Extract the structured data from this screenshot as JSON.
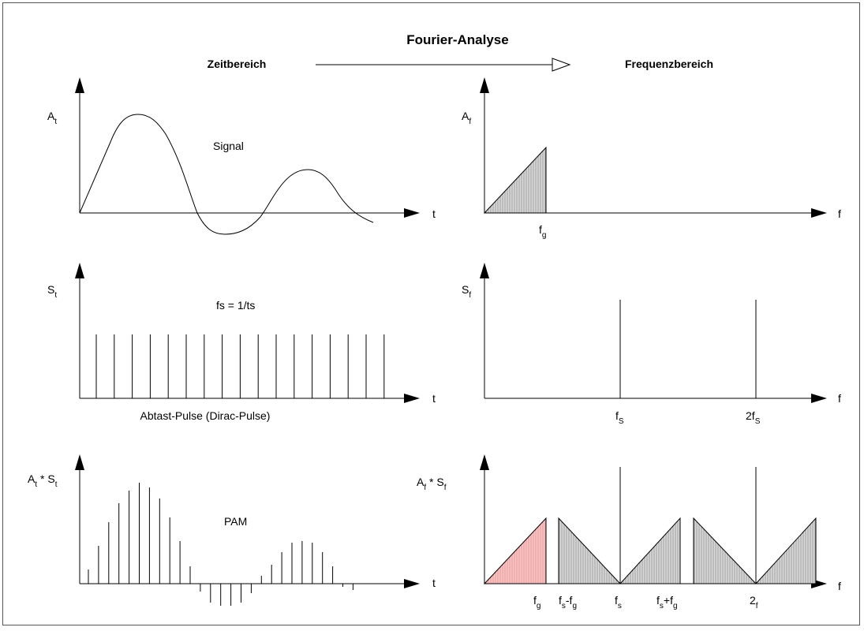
{
  "header": {
    "title": "Fourier-Analyse",
    "time_domain": "Zeitbereich",
    "freq_domain": "Frequenzbereich"
  },
  "row1": {
    "time": {
      "ylabel": "A",
      "ylabel_sub": "t",
      "xlabel": "t",
      "caption": "Signal"
    },
    "freq": {
      "ylabel": "A",
      "ylabel_sub": "f",
      "xlabel": "f",
      "tick": "f",
      "tick_sub": "g"
    }
  },
  "row2": {
    "time": {
      "ylabel": "S",
      "ylabel_sub": "t",
      "xlabel": "t",
      "caption_top": "fs = 1/ts",
      "caption_bottom": "Abtast-Pulse (Dirac-Pulse)"
    },
    "freq": {
      "ylabel": "S",
      "ylabel_sub": "f",
      "xlabel": "f",
      "tick1": "f",
      "tick1_sub": "S",
      "tick2": "2f",
      "tick2_sub": "S"
    }
  },
  "row3": {
    "time": {
      "ylabel_a": "A",
      "ylabel_a_sub": "t",
      "ylabel_op": " * ",
      "ylabel_b": "S",
      "ylabel_b_sub": "t",
      "xlabel": "t",
      "caption": "PAM"
    },
    "freq": {
      "ylabel_a": "A",
      "ylabel_a_sub": "f",
      "ylabel_op": " * ",
      "ylabel_b": "S",
      "ylabel_b_sub": "f",
      "xlabel": "f",
      "ticks": [
        {
          "main": "f",
          "sub": "g",
          "post_main": "",
          "post_sub": ""
        },
        {
          "main": "f",
          "sub": "s",
          "post_main": "-f",
          "post_sub": "g"
        },
        {
          "main": "f",
          "sub": "s",
          "post_main": "",
          "post_sub": ""
        },
        {
          "main": "f",
          "sub": "s",
          "post_main": "+f",
          "post_sub": "g"
        },
        {
          "main": "2",
          "sub": "f",
          "post_main": "",
          "post_sub": ""
        }
      ]
    }
  },
  "colors": {
    "line": "#000000",
    "hatch": "#c8c8c8",
    "baseband_fill": "#f4b8b8"
  }
}
